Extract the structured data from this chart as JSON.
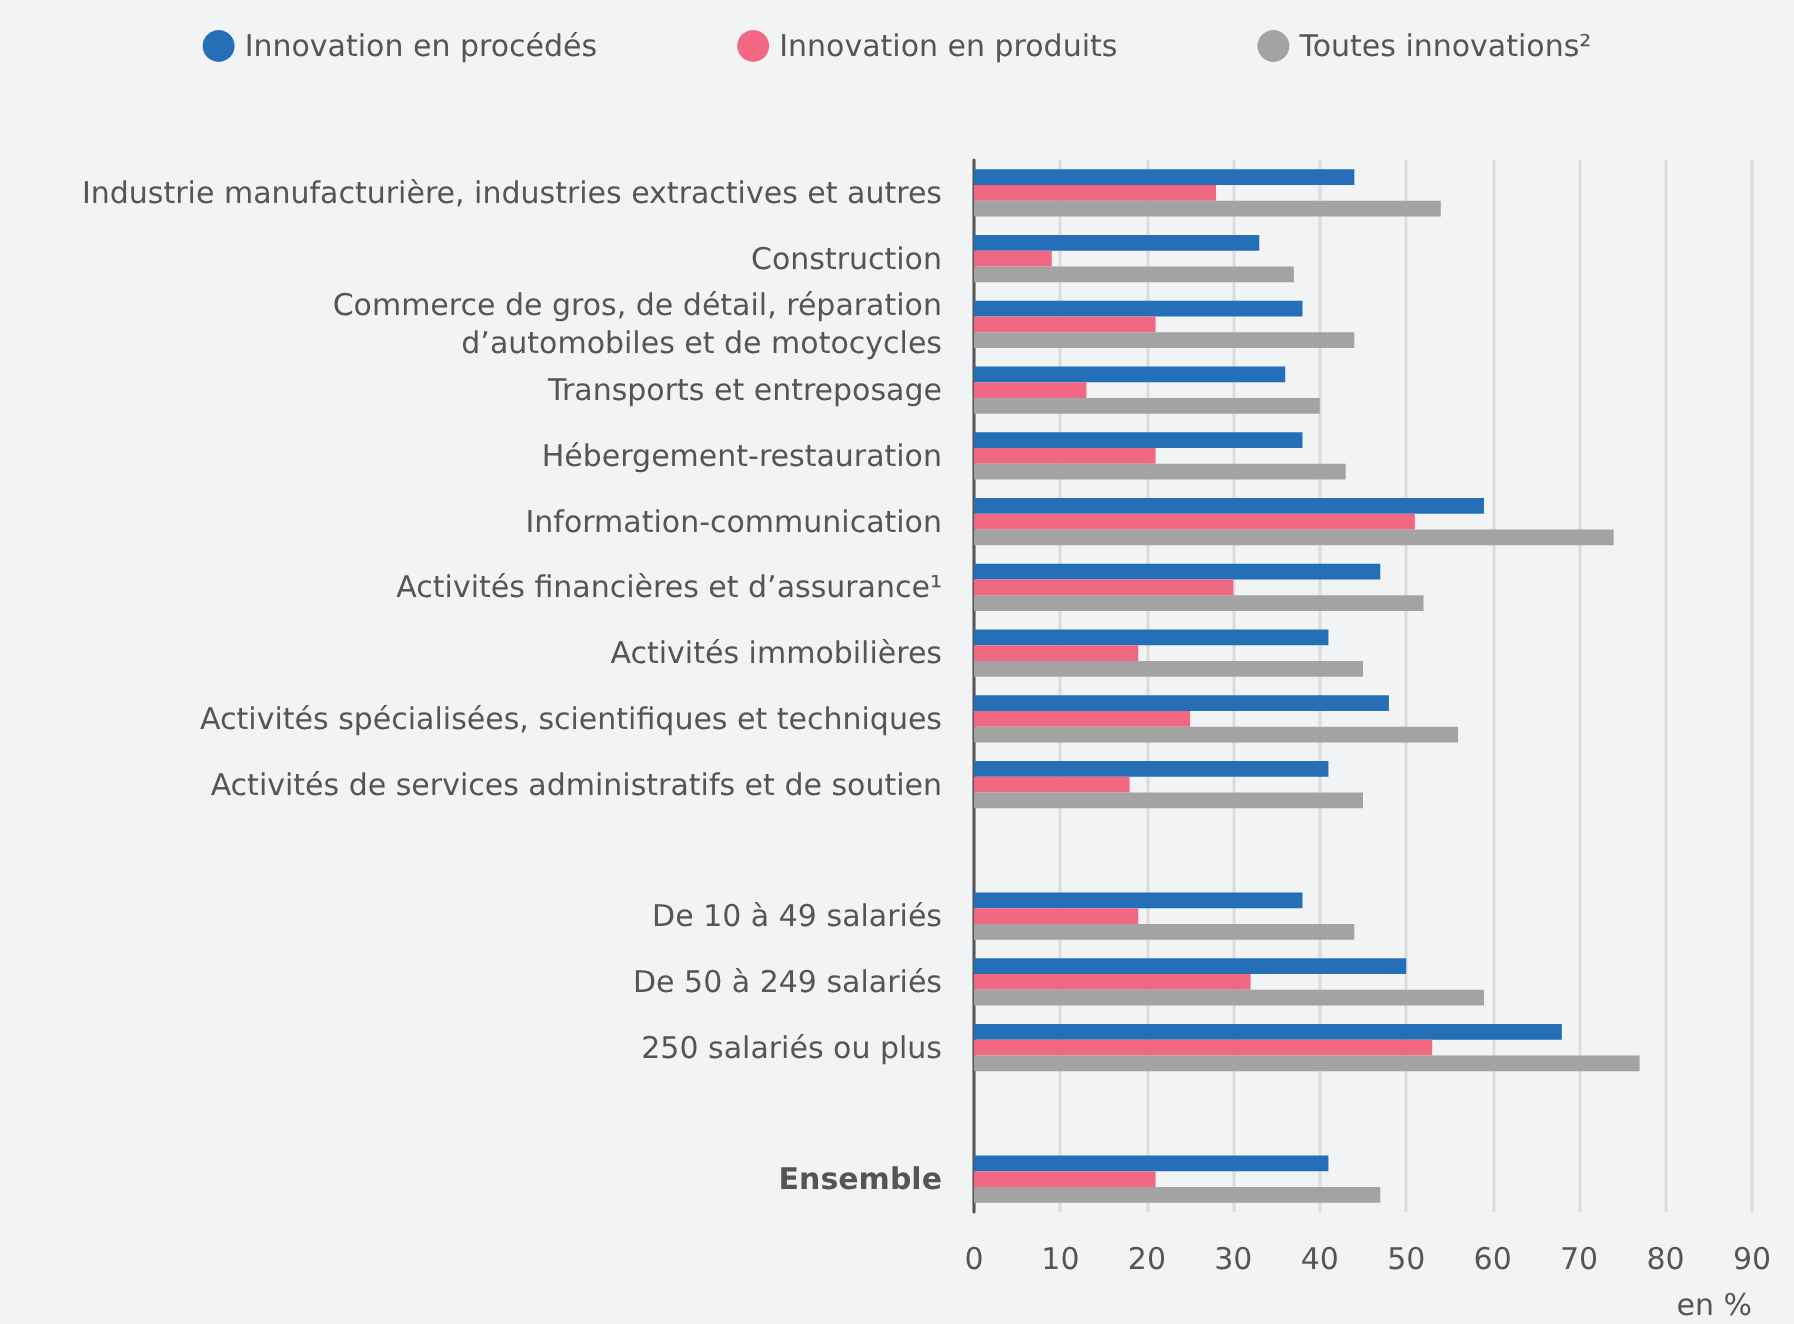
{
  "chart_data": {
    "type": "bar",
    "orientation": "horizontal",
    "categories": [
      "Industrie manufacturière, industries extractives et autres",
      "Construction",
      "Commerce de gros, de détail, réparation\nd’automobiles et de motocycles",
      "Transports et entreposage",
      "Hébergement-restauration",
      "Information-communication",
      "Activités financières et d’assurance¹",
      "Activités immobilières",
      "Activités spécialisées, scientifiques et techniques",
      "Activités de services administratifs et de soutien",
      null,
      "De 10 à 49 salariés",
      "De 50 à 249 salariés",
      "250 salariés ou plus",
      null,
      "Ensemble"
    ],
    "series": [
      {
        "name": "Innovation en procédés",
        "color": "#246fb8",
        "values": [
          44,
          33,
          38,
          36,
          38,
          59,
          47,
          41,
          48,
          41,
          null,
          38,
          50,
          68,
          null,
          41
        ]
      },
      {
        "name": "Innovation en produits",
        "color": "#f06882",
        "values": [
          28,
          9,
          21,
          13,
          21,
          51,
          30,
          19,
          25,
          18,
          null,
          19,
          32,
          53,
          null,
          21
        ]
      },
      {
        "name": "Toutes innovations²",
        "color": "#a3a3a3",
        "values": [
          54,
          37,
          44,
          40,
          43,
          74,
          52,
          45,
          56,
          45,
          null,
          44,
          59,
          77,
          null,
          47
        ]
      }
    ],
    "xlabel": "en %",
    "xlim": [
      0,
      90
    ],
    "xticks": [
      0,
      10,
      20,
      30,
      40,
      50,
      60,
      70,
      80,
      90
    ],
    "grid": "x",
    "legend": "top"
  }
}
